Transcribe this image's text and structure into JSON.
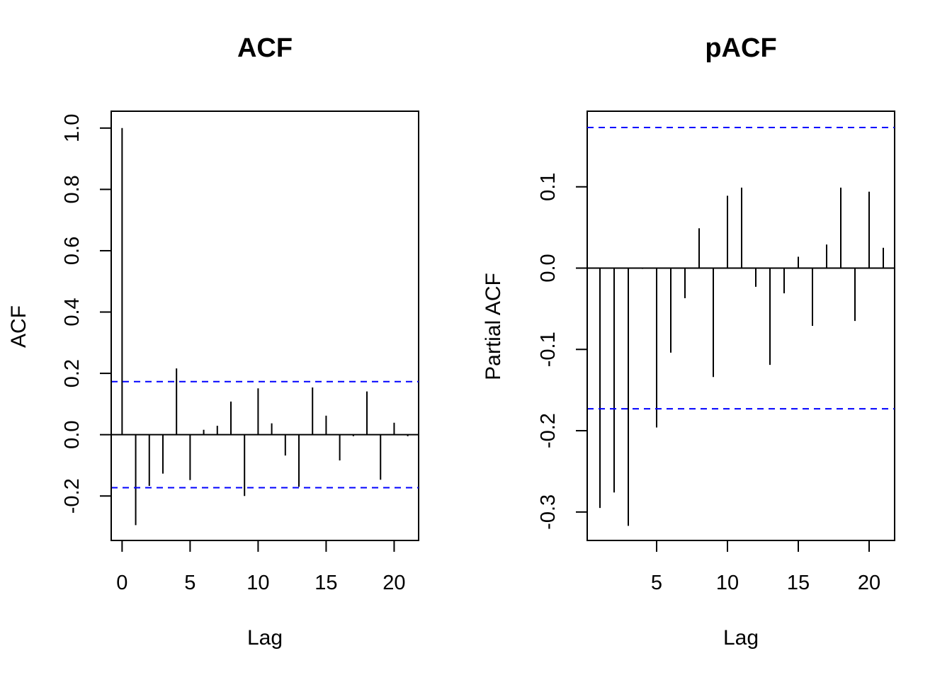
{
  "chart_data": [
    {
      "type": "bar",
      "title": "ACF",
      "xlabel": "Lag",
      "ylabel": "ACF",
      "xlim": [
        -0.8,
        21.8
      ],
      "ylim": [
        -0.345,
        1.055
      ],
      "xticks": [
        0,
        5,
        10,
        15,
        20
      ],
      "yticks": [
        -0.2,
        0.0,
        0.2,
        0.4,
        0.6,
        0.8,
        1.0
      ],
      "ytick_labels": [
        "-0.2",
        "0.0",
        "0.2",
        "0.4",
        "0.6",
        "0.8",
        "1.0"
      ],
      "zero_line": true,
      "confidence_bounds": [
        0.173,
        -0.173
      ],
      "confidence_color": "#0000ff",
      "lags": [
        0,
        1,
        2,
        3,
        4,
        5,
        6,
        7,
        8,
        9,
        10,
        11,
        12,
        13,
        14,
        15,
        16,
        17,
        18,
        19,
        20,
        21
      ],
      "values": [
        1.0,
        -0.295,
        -0.167,
        -0.127,
        0.216,
        -0.148,
        0.016,
        0.029,
        0.108,
        -0.2,
        0.151,
        0.037,
        -0.068,
        -0.17,
        0.154,
        0.062,
        -0.084,
        -0.005,
        0.141,
        -0.147,
        0.039,
        -0.005
      ]
    },
    {
      "type": "bar",
      "title": "pACF",
      "xlabel": "Lag",
      "ylabel": "Partial ACF",
      "xlim": [
        0.1,
        21.8
      ],
      "ylim": [
        -0.335,
        0.193
      ],
      "xticks": [
        5,
        10,
        15,
        20
      ],
      "yticks": [
        -0.3,
        -0.2,
        -0.1,
        0.0,
        0.1
      ],
      "ytick_labels": [
        "-0.3",
        "-0.2",
        "-0.1",
        "0.0",
        "0.1"
      ],
      "zero_line": true,
      "confidence_bounds": [
        0.173,
        -0.173
      ],
      "confidence_color": "#0000ff",
      "lags": [
        1,
        2,
        3,
        4,
        5,
        6,
        7,
        8,
        9,
        10,
        11,
        12,
        13,
        14,
        15,
        16,
        17,
        18,
        19,
        20,
        21
      ],
      "values": [
        -0.295,
        -0.276,
        -0.317,
        -0.001,
        -0.196,
        -0.104,
        -0.037,
        0.049,
        -0.134,
        0.089,
        0.099,
        -0.023,
        -0.119,
        -0.031,
        0.014,
        -0.071,
        0.029,
        0.099,
        -0.065,
        0.094,
        0.025
      ]
    }
  ]
}
